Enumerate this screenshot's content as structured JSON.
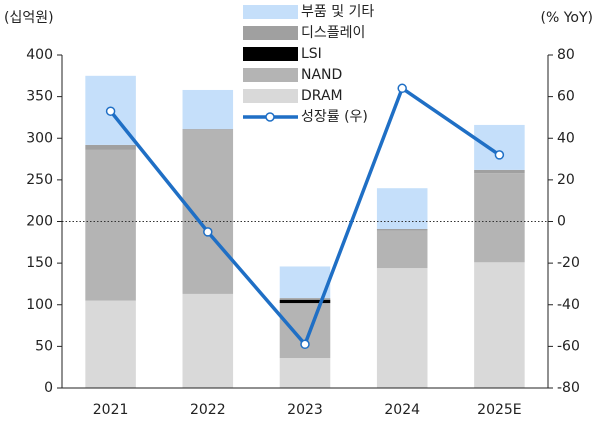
{
  "chart_data": {
    "type": "bar",
    "y_label": "(십억원)",
    "y2_label": "(% YoY)",
    "categories": [
      "2021",
      "2022",
      "2023",
      "2024",
      "2025E"
    ],
    "stacked": true,
    "series": [
      {
        "name": "DRAM",
        "color": "#d9d9d9",
        "values": [
          105,
          113,
          36,
          144,
          151
        ]
      },
      {
        "name": "NAND",
        "color": "#b4b4b4",
        "values": [
          181,
          197,
          66,
          45,
          107
        ]
      },
      {
        "name": "LSI",
        "color": "#000000",
        "values": [
          0,
          0,
          4,
          0,
          0
        ]
      },
      {
        "name": "디스플레이",
        "color": "#a0a0a0",
        "values": [
          6,
          1,
          2,
          2,
          4
        ]
      },
      {
        "name": "부품 및 기타",
        "color": "#c5dffa",
        "values": [
          83,
          47,
          38,
          49,
          54
        ]
      },
      {
        "name": "성장률 (우)",
        "type": "line",
        "axis": "y2",
        "color": "#1f6fc5",
        "values": [
          53,
          -5,
          -59,
          64,
          32
        ]
      }
    ],
    "ylim": [
      0,
      400
    ],
    "yticks": [
      0,
      50,
      100,
      150,
      200,
      250,
      300,
      350,
      400
    ],
    "y2lim": [
      -80,
      80
    ],
    "y2ticks": [
      -80,
      -60,
      -40,
      -20,
      0,
      20,
      40,
      60,
      80
    ]
  }
}
